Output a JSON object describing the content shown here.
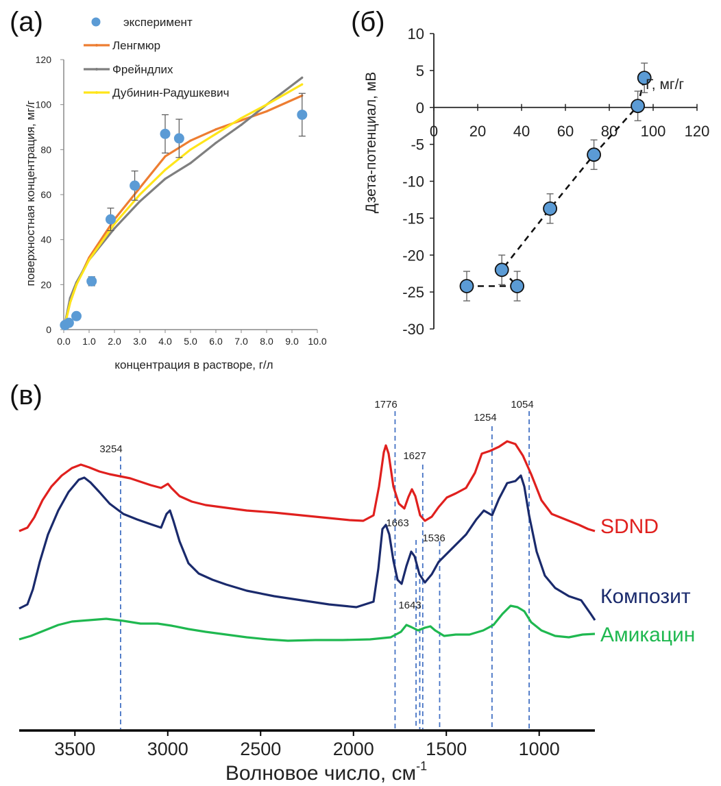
{
  "panels": {
    "a_label": "(а)",
    "b_label": "(б)",
    "c_label": "(в)"
  },
  "chart_data": [
    {
      "id": "a",
      "type": "scatter",
      "xlabel": "концентрация в растворе, г/л",
      "ylabel": "поверхностная концентрация, мг/г",
      "xlim": [
        0,
        10
      ],
      "ylim": [
        0,
        120
      ],
      "x_ticks": [
        "0.0",
        "1.0",
        "2.0",
        "3.0",
        "4.0",
        "5.0",
        "6.0",
        "7.0",
        "8.0",
        "9.0",
        "10.0"
      ],
      "y_ticks": [
        "0",
        "20",
        "40",
        "60",
        "80",
        "100",
        "120"
      ],
      "legend": [
        {
          "name": "эксперимент",
          "color": "#5b9bd5",
          "marker": "dot"
        },
        {
          "name": "Ленгмюр",
          "color": "#ed7d31",
          "marker": "line"
        },
        {
          "name": "Фрейндлих",
          "color": "#7f7f7f",
          "marker": "line"
        },
        {
          "name": "Дубинин-Радушкевич",
          "color": "#ffe51a",
          "marker": "line"
        }
      ],
      "experiment": {
        "x": [
          0.05,
          0.2,
          0.5,
          1.1,
          1.85,
          2.8,
          4.0,
          4.55,
          9.4
        ],
        "y": [
          2,
          3,
          6,
          21.5,
          49,
          64,
          87,
          85,
          95.5
        ],
        "err": [
          0,
          0,
          0,
          2,
          5,
          6.5,
          8.5,
          8.5,
          9.5
        ]
      },
      "models": [
        {
          "name": "Ленгмюр",
          "color": "#ed7d31",
          "x": [
            0,
            0.25,
            0.5,
            1,
            2,
            3,
            4,
            5,
            6,
            7,
            8,
            9.4
          ],
          "y": [
            0,
            12,
            20,
            32,
            49,
            63,
            77,
            84,
            89,
            93,
            97,
            104
          ]
        },
        {
          "name": "Фрейндлих",
          "color": "#7f7f7f",
          "x": [
            0,
            0.25,
            0.5,
            1,
            2,
            3,
            4,
            5,
            6,
            7,
            8,
            9.4
          ],
          "y": [
            0,
            14,
            21,
            31,
            45,
            57,
            67,
            74,
            83,
            91,
            100,
            112
          ]
        },
        {
          "name": "Дубинин-Радушкевич",
          "color": "#ffe51a",
          "x": [
            0,
            0.25,
            0.5,
            1,
            2,
            3,
            4,
            5,
            6,
            7,
            8,
            9.4
          ],
          "y": [
            0,
            12,
            20,
            31,
            47,
            60,
            71,
            80,
            87,
            94,
            100,
            109
          ]
        }
      ]
    },
    {
      "id": "b",
      "type": "scatter",
      "xlabel": "Г, мг/г",
      "ylabel": "Дзета-потенциал, мВ",
      "xlim": [
        0,
        120
      ],
      "ylim": [
        -30,
        10
      ],
      "x_ticks": [
        "0",
        "20",
        "40",
        "60",
        "80",
        "100",
        "120"
      ],
      "y_ticks": [
        "10",
        "5",
        "0",
        "-5",
        "-10",
        "-15",
        "-20",
        "-25",
        "-30"
      ],
      "points": {
        "x": [
          15,
          31,
          38,
          53,
          73,
          93,
          96
        ],
        "y": [
          -24.2,
          -22,
          -24.2,
          -13.7,
          -6.4,
          0.2,
          4
        ],
        "err": [
          2,
          2,
          2,
          2,
          2,
          2,
          2
        ]
      },
      "trend_order": [
        0,
        2,
        1,
        3,
        4,
        5,
        6
      ]
    },
    {
      "id": "c",
      "type": "line",
      "xlabel": "Волновое число, см",
      "xlabel_sup": "-1",
      "xlim": [
        3800,
        700
      ],
      "x_ticks": [
        "3500",
        "3000",
        "2500",
        "2000",
        "1500",
        "1000"
      ],
      "series": [
        {
          "name": "SDND",
          "color": "#e0201e"
        },
        {
          "name": "Композит",
          "color": "#1a2a6c"
        },
        {
          "name": "Амикацин",
          "color": "#1fb850"
        }
      ],
      "peak_lines": [
        3254,
        1776,
        1663,
        1643,
        1627,
        1536,
        1254,
        1054
      ],
      "peak_labels": [
        "3254",
        "1776",
        "1627",
        "1663",
        "1536",
        "1643",
        "1254",
        "1054"
      ]
    }
  ]
}
